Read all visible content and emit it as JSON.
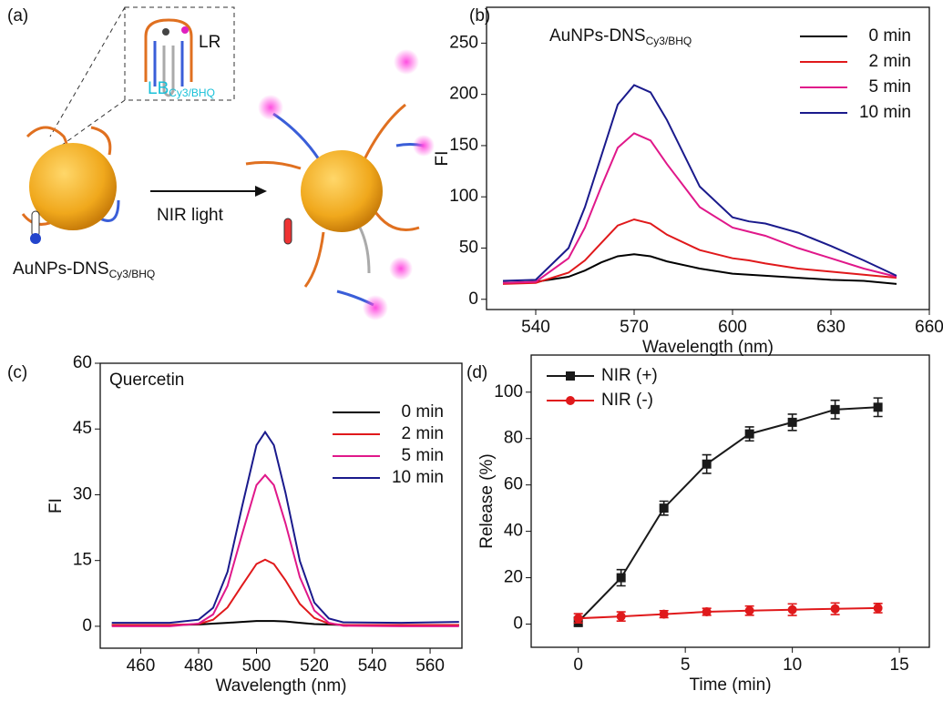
{
  "diagram": {
    "panel_label": "(a)",
    "lr": "LR",
    "lb": "LB",
    "lb_sub": "Cy3/BHQ",
    "arrow": "NIR light",
    "name": "AuNPs-DNS",
    "name_sub": "Cy3/BHQ"
  },
  "chart_data": [
    {
      "type": "line",
      "panel_label": "(b)",
      "annotation": "AuNPs-DNS",
      "annotation_sub": "Cy3/BHQ",
      "xlabel": "Wavelength (nm)",
      "ylabel": "FI",
      "xlim": [
        525,
        660
      ],
      "ylim": [
        -10,
        285
      ],
      "xticks": [
        540,
        570,
        600,
        630,
        660
      ],
      "yticks": [
        0,
        50,
        100,
        150,
        200,
        250
      ],
      "legend": "upper right",
      "x": [
        530,
        540,
        550,
        555,
        560,
        565,
        570,
        575,
        580,
        590,
        600,
        605,
        610,
        620,
        630,
        640,
        650
      ],
      "series": [
        {
          "name": "0 min",
          "color": "#000000",
          "values": [
            16,
            17,
            22,
            28,
            36,
            42,
            44,
            42,
            37,
            30,
            25,
            24,
            23,
            21,
            19,
            18,
            15
          ]
        },
        {
          "name": "2 min",
          "color": "#e0191b",
          "values": [
            15,
            16,
            26,
            38,
            55,
            72,
            78,
            74,
            63,
            48,
            40,
            38,
            35,
            30,
            27,
            24,
            21
          ]
        },
        {
          "name": "5 min",
          "color": "#e0188a",
          "values": [
            16,
            17,
            40,
            70,
            110,
            148,
            162,
            155,
            132,
            90,
            70,
            66,
            62,
            50,
            40,
            30,
            22
          ]
        },
        {
          "name": "10 min",
          "color": "#1a1a8c",
          "values": [
            18,
            19,
            50,
            90,
            140,
            190,
            209,
            202,
            175,
            110,
            80,
            76,
            74,
            65,
            52,
            38,
            23
          ]
        }
      ]
    },
    {
      "type": "line",
      "panel_label": "(c)",
      "annotation": "Quercetin",
      "xlabel": "Wavelength (nm)",
      "ylabel": "FI",
      "xlim": [
        446,
        571
      ],
      "ylim": [
        -5,
        60
      ],
      "xticks": [
        460,
        480,
        500,
        520,
        540,
        560
      ],
      "yticks": [
        0,
        15,
        30,
        45,
        60
      ],
      "legend": "upper right",
      "x": [
        450,
        470,
        480,
        485,
        490,
        495,
        500,
        503,
        506,
        510,
        515,
        520,
        525,
        530,
        550,
        570
      ],
      "series": [
        {
          "name": "0 min",
          "color": "#000000",
          "values": [
            0.3,
            0.3,
            0.4,
            0.6,
            0.8,
            1.0,
            1.2,
            1.2,
            1.2,
            1.1,
            0.8,
            0.5,
            0.4,
            0.3,
            0.3,
            0.3
          ]
        },
        {
          "name": "2 min",
          "color": "#e0191b",
          "values": [
            0.3,
            0.3,
            0.5,
            1.5,
            4.3,
            9.3,
            14.2,
            15.2,
            14.2,
            10.5,
            5.1,
            1.9,
            0.6,
            0.3,
            0.3,
            0.3
          ]
        },
        {
          "name": "5 min",
          "color": "#e0188a",
          "values": [
            0,
            0,
            0.6,
            2.7,
            9.2,
            20.9,
            32.2,
            34.5,
            32.2,
            23.5,
            11.2,
            3.6,
            0.8,
            0.1,
            0,
            0
          ]
        },
        {
          "name": "10 min",
          "color": "#1a1a8c",
          "values": [
            0.8,
            0.8,
            1.5,
            4.2,
            12.4,
            27.2,
            41.3,
            44.3,
            41.3,
            30.5,
            14.9,
            5.4,
            1.8,
            0.9,
            0.8,
            1.0
          ]
        }
      ]
    },
    {
      "type": "line",
      "panel_label": "(d)",
      "xlabel": "Time (min)",
      "ylabel": "Release (%)",
      "xlim": [
        -2.2,
        16.4
      ],
      "ylim": [
        -10,
        116
      ],
      "xticks": [
        0,
        5,
        10,
        15
      ],
      "yticks": [
        0,
        20,
        40,
        60,
        80,
        100
      ],
      "legend": "upper left",
      "x": [
        0,
        2,
        4,
        6,
        8,
        10,
        12,
        14
      ],
      "series": [
        {
          "name": "NIR (+)",
          "color": "#1a1a1a",
          "marker": "square",
          "values": [
            1,
            20,
            50,
            69,
            82,
            87,
            92.5,
            93.5
          ],
          "errors": [
            2,
            3.5,
            3,
            4,
            3,
            3.5,
            4,
            4
          ]
        },
        {
          "name": "NIR (-)",
          "color": "#e0191b",
          "marker": "circle",
          "values": [
            2.5,
            3.3,
            4.3,
            5.3,
            5.8,
            6.2,
            6.6,
            6.9
          ],
          "errors": [
            2,
            2,
            1.5,
            1.5,
            2,
            2.5,
            2.5,
            2
          ]
        }
      ]
    }
  ]
}
